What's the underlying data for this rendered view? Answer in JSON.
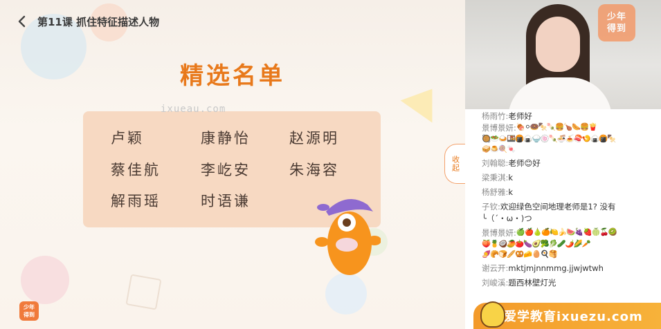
{
  "header": {
    "back_icon": "chevron-left-icon",
    "lesson_title": "第11课 抓住特征描述人物"
  },
  "slide": {
    "heading": "精选名单",
    "watermark": "ixueau.com",
    "names": [
      "卢颖",
      "康静怡",
      "赵源明",
      "蔡佳航",
      "李屹安",
      "朱海容",
      "解雨瑶",
      "时语谦"
    ],
    "logo_small": [
      "少年",
      "得到"
    ]
  },
  "collapse_tab": {
    "label": "收起"
  },
  "video": {
    "logo": [
      "少年",
      "得到"
    ]
  },
  "chat": {
    "messages": [
      {
        "user": "杨雨竹:",
        "text": "老师好"
      },
      {
        "user": "景博景妍:",
        "text": "🍖⚪🍩🍢🍡🍔🍗🌭🍔🍟",
        "extra": [
          "🥘🥗🍛🍱🍘🍙🍚🍥🍡🍜🍝🍣🍤🍙🍘🍢",
          "🥪🍮🍭🍬"
        ]
      },
      {
        "user": "刘翰聪:",
        "text": "老师😊好"
      },
      {
        "user": "梁秉淇:",
        "text": "k"
      },
      {
        "user": "杨舒雅:",
        "text": "k"
      },
      {
        "user": "子钦:",
        "text": "欢迎绿色空间地理老师是1? 没有",
        "extra": [
          "╰（´・ω・)つ"
        ]
      },
      {
        "user": "景博景妍:",
        "text": "🍏🍎🍐🍊🍋🍌🍉🍇🍓🍈🍒🥝",
        "extra": [
          "🍑🍍🥥🥭🍅🍆🥑🥦🥬🥒🌶️🌽🥕",
          "🍠🥐🍞🥖🥨🧀🥚🍳🥞"
        ]
      },
      {
        "user": "谢云开:",
        "text": "mktjmjnnmmg.jjwjwtwh"
      },
      {
        "user": "刘峻溪:",
        "text": "题西林壁灯光"
      }
    ]
  },
  "banner": {
    "text": "爱学教育ixuezu.com"
  },
  "colors": {
    "accent": "#e8791b",
    "card": "#f7d7bf",
    "banner": "#f39a2a"
  }
}
